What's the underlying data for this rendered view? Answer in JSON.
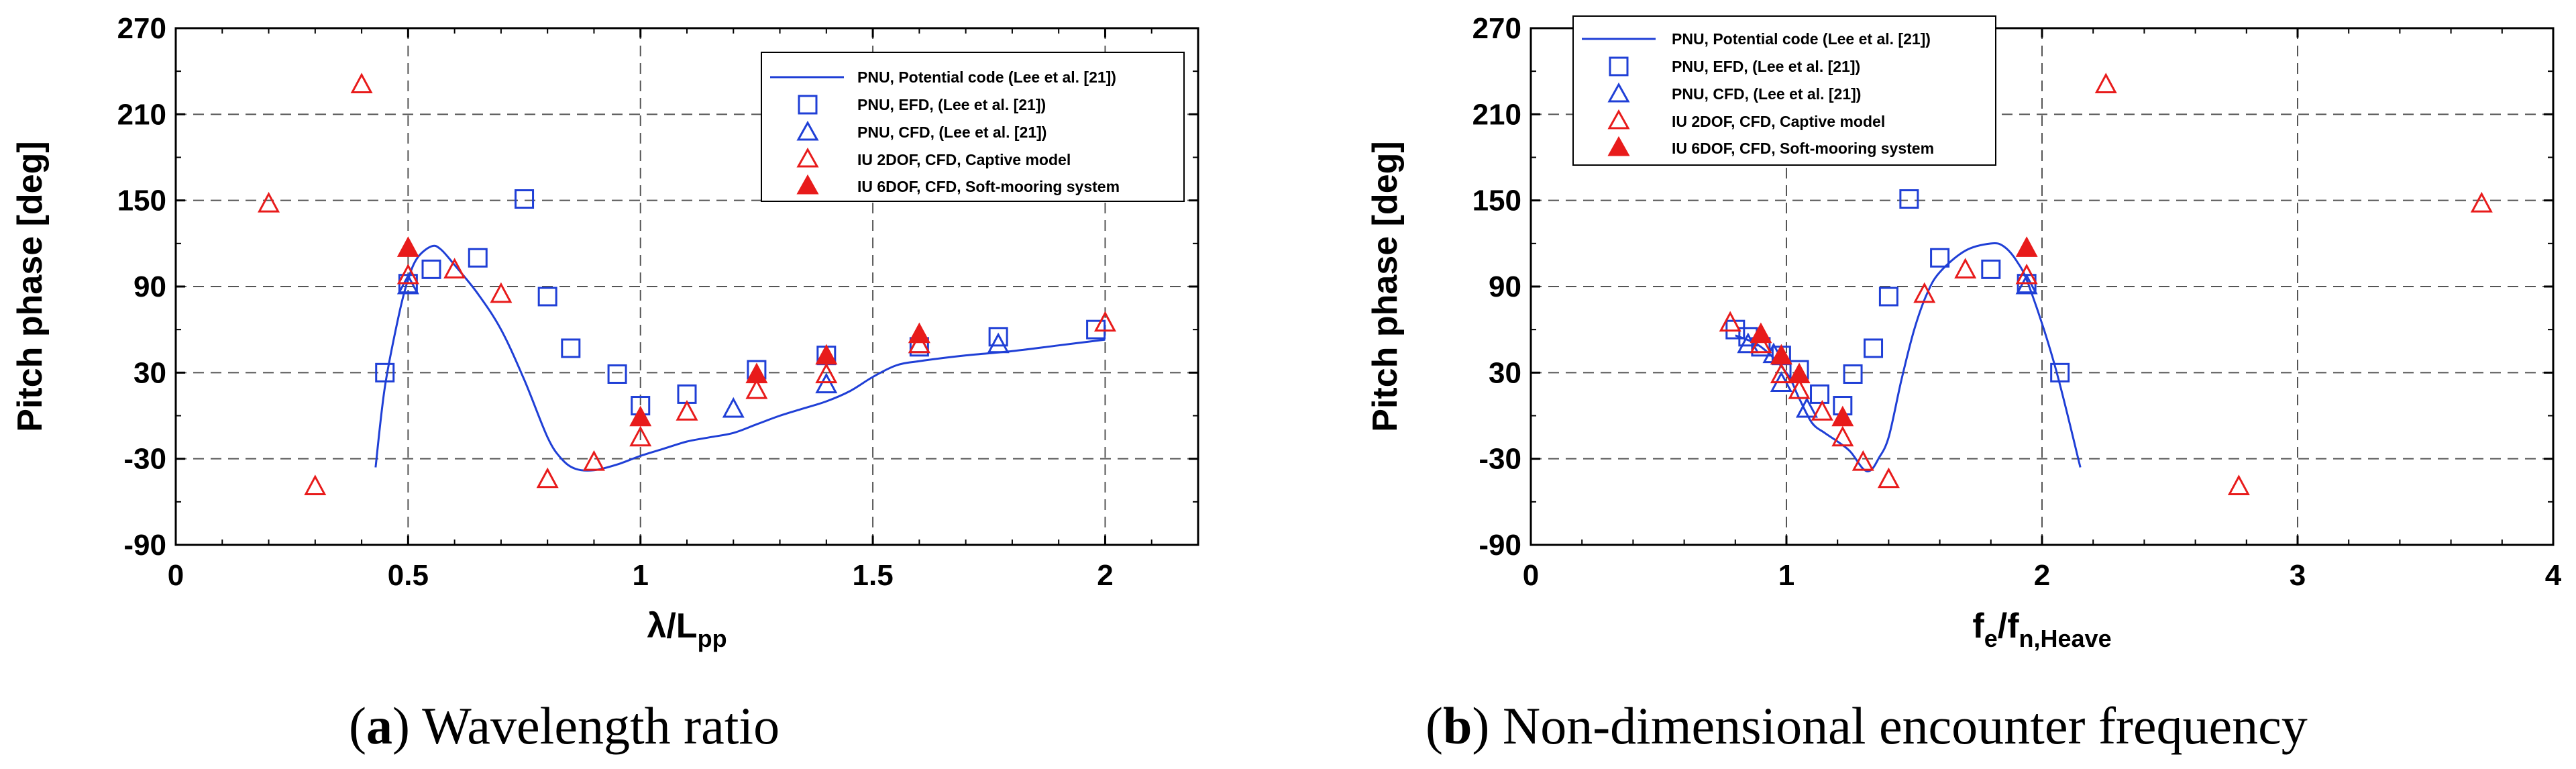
{
  "chart_data": [
    {
      "id": "a",
      "type": "scatter",
      "xlabel": "λ/L",
      "xlabel_sub": "pp",
      "ylabel": "Pitch phase [deg]",
      "xlim": [
        0,
        2.2
      ],
      "ylim": [
        -90,
        270
      ],
      "xticks": [
        0,
        0.5,
        1,
        1.5,
        2
      ],
      "xtick_labels": [
        "0",
        "0.5",
        "1",
        "1.5",
        "2"
      ],
      "yticks": [
        -90,
        -30,
        30,
        90,
        150,
        210,
        270
      ],
      "ytick_labels": [
        "-90",
        "-30",
        "30",
        "90",
        "150",
        "210",
        "270"
      ],
      "vgrid": [
        0.5,
        1,
        1.5,
        2
      ],
      "legend_position": "top-right",
      "caption_letter": "a",
      "caption_text": "Wavelength ratio",
      "series": [
        {
          "name": "PNU, Potential code (Lee et al. [21])",
          "marker": "line",
          "color": "#1f3fd6",
          "x": [
            0.43,
            0.45,
            0.48,
            0.5,
            0.52,
            0.55,
            0.57,
            0.6,
            0.65,
            0.7,
            0.75,
            0.8,
            0.83,
            0.86,
            0.9,
            0.95,
            1.0,
            1.05,
            1.1,
            1.15,
            1.2,
            1.25,
            1.3,
            1.35,
            1.4,
            1.45,
            1.5,
            1.55,
            1.6,
            1.7,
            1.8,
            1.9,
            2.0
          ],
          "y": [
            -36,
            20,
            70,
            95,
            110,
            118,
            116,
            105,
            85,
            60,
            25,
            -15,
            -30,
            -37,
            -38,
            -34,
            -28,
            -23,
            -18,
            -15,
            -12,
            -6,
            0,
            5,
            10,
            17,
            27,
            35,
            38,
            42,
            45,
            49,
            53
          ]
        },
        {
          "name": "PNU, EFD, (Lee et al. [21])",
          "marker": "square",
          "color": "#1f3fd6",
          "x": [
            0.45,
            0.5,
            0.55,
            0.65,
            0.75,
            0.8,
            0.85,
            0.95,
            1.0,
            1.1,
            1.25,
            1.4,
            1.6,
            1.77,
            1.98
          ],
          "y": [
            30,
            92,
            102,
            110,
            151,
            83,
            47,
            29,
            7,
            15,
            32,
            42,
            48,
            55,
            60
          ]
        },
        {
          "name": "PNU, CFD, (Lee et al. [21])",
          "marker": "triangle-open",
          "color": "#1f3fd6",
          "x": [
            0.5,
            1.2,
            1.4,
            1.6,
            1.77
          ],
          "y": [
            90,
            4,
            21,
            49,
            49
          ]
        },
        {
          "name": "IU 2DOF, CFD, Captive model",
          "marker": "triangle-open",
          "color": "#e81b1b",
          "x": [
            0.2,
            0.3,
            0.4,
            0.5,
            0.6,
            0.7,
            0.8,
            0.9,
            1.0,
            1.1,
            1.25,
            1.4,
            1.6,
            2.0
          ],
          "y": [
            147,
            -50,
            230,
            97,
            101,
            84,
            -45,
            -33,
            -16,
            2,
            17,
            28,
            49,
            64
          ]
        },
        {
          "name": "IU 6DOF, CFD, Soft-mooring system",
          "marker": "triangle-filled",
          "color": "#e81b1b",
          "x": [
            0.5,
            1.0,
            1.25,
            1.4,
            1.6
          ],
          "y": [
            116,
            -2,
            28,
            41,
            56
          ]
        }
      ]
    },
    {
      "id": "b",
      "type": "scatter",
      "xlabel": "f",
      "xlabel_sub1": "e",
      "xlabel_mid": "/f",
      "xlabel_sub2": "n,Heave",
      "ylabel": "Pitch phase [deg]",
      "xlim": [
        0,
        4
      ],
      "ylim": [
        -90,
        270
      ],
      "xticks": [
        0,
        1,
        2,
        3,
        4
      ],
      "xtick_labels": [
        "0",
        "1",
        "2",
        "3",
        "4"
      ],
      "yticks": [
        -90,
        -30,
        30,
        90,
        150,
        210,
        270
      ],
      "ytick_labels": [
        "-90",
        "-30",
        "30",
        "90",
        "150",
        "210",
        "270"
      ],
      "vgrid": [
        1,
        2,
        3
      ],
      "legend_position": "top-left",
      "caption_letter": "b",
      "caption_text": "Non-dimensional encounter frequency",
      "series": [
        {
          "name": "PNU, Potential code (Lee et al. [21])",
          "marker": "line",
          "color": "#1f3fd6",
          "x": [
            0.8,
            0.9,
            1.0,
            1.05,
            1.1,
            1.15,
            1.2,
            1.25,
            1.3,
            1.33,
            1.36,
            1.4,
            1.45,
            1.5,
            1.55,
            1.6,
            1.7,
            1.8,
            1.85,
            1.9,
            1.95,
            2.05,
            2.15
          ],
          "y": [
            56,
            48,
            30,
            12,
            -5,
            -12,
            -18,
            -25,
            -37,
            -38,
            -30,
            -15,
            25,
            60,
            85,
            100,
            115,
            120,
            118,
            108,
            90,
            35,
            -36
          ]
        },
        {
          "name": "PNU, EFD, (Lee et al. [21])",
          "marker": "square",
          "color": "#1f3fd6",
          "x": [
            0.8,
            0.85,
            0.9,
            0.98,
            1.05,
            1.13,
            1.22,
            1.26,
            1.34,
            1.4,
            1.48,
            1.6,
            1.8,
            1.94,
            2.07
          ],
          "y": [
            60,
            55,
            48,
            42,
            32,
            15,
            7,
            29,
            47,
            83,
            151,
            110,
            102,
            92,
            30
          ]
        },
        {
          "name": "PNU, CFD, (Lee et al. [21])",
          "marker": "triangle-open",
          "color": "#1f3fd6",
          "x": [
            0.85,
            0.95,
            0.98,
            1.08,
            1.94
          ],
          "y": [
            49,
            42,
            22,
            4,
            90
          ]
        },
        {
          "name": "IU 2DOF, CFD, Captive model",
          "marker": "triangle-open",
          "color": "#e81b1b",
          "x": [
            0.78,
            0.9,
            0.98,
            1.05,
            1.14,
            1.22,
            1.3,
            1.4,
            1.54,
            1.7,
            1.94,
            2.25,
            2.77,
            3.72
          ],
          "y": [
            64,
            49,
            28,
            17,
            2,
            -16,
            -33,
            -45,
            84,
            101,
            97,
            230,
            -50,
            147
          ]
        },
        {
          "name": "IU 6DOF, CFD, Soft-mooring system",
          "marker": "triangle-filled",
          "color": "#e81b1b",
          "x": [
            0.9,
            0.98,
            1.05,
            1.22,
            1.94
          ],
          "y": [
            56,
            41,
            28,
            -2,
            116
          ]
        }
      ]
    }
  ]
}
